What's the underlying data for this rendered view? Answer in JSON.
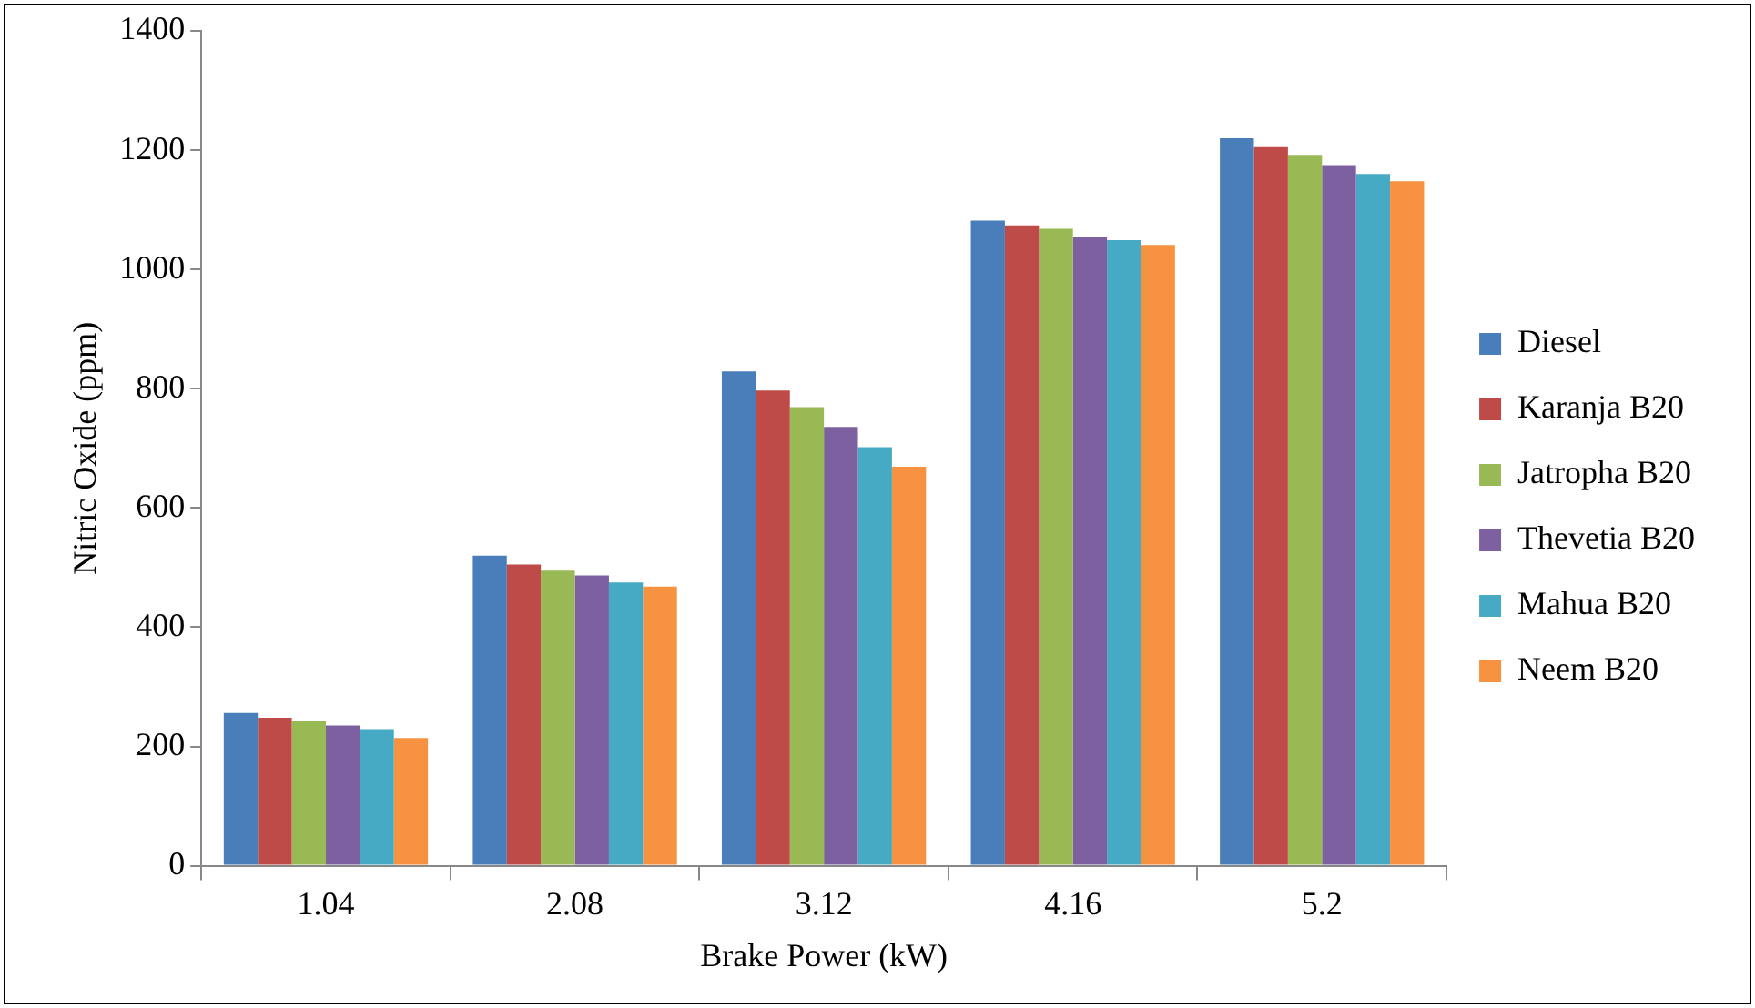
{
  "chart_data": {
    "type": "bar",
    "xlabel": "Brake Power (kW)",
    "ylabel": "Nitric Oxide (ppm)",
    "categories": [
      "1.04",
      "2.08",
      "3.12",
      "4.16",
      "5.2"
    ],
    "series": [
      {
        "name": "Diesel",
        "color": "#4a7ebb",
        "values": [
          256,
          520,
          829,
          1082,
          1220
        ]
      },
      {
        "name": "Karanja B20",
        "color": "#be4b48",
        "values": [
          248,
          505,
          797,
          1074,
          1205
        ]
      },
      {
        "name": "Jatropha B20",
        "color": "#98b954",
        "values": [
          243,
          495,
          769,
          1068,
          1192
        ]
      },
      {
        "name": "Thevetia B20",
        "color": "#7d60a0",
        "values": [
          235,
          487,
          736,
          1055,
          1175
        ]
      },
      {
        "name": "Mahua B20",
        "color": "#46aac5",
        "values": [
          229,
          475,
          702,
          1049,
          1160
        ]
      },
      {
        "name": "Neem B20",
        "color": "#f69240",
        "values": [
          214,
          468,
          669,
          1041,
          1148
        ]
      }
    ],
    "ylim": [
      0,
      1400
    ],
    "yticks": [
      0,
      200,
      400,
      600,
      800,
      1000,
      1200,
      1400
    ],
    "grid": false,
    "legend": "right"
  }
}
